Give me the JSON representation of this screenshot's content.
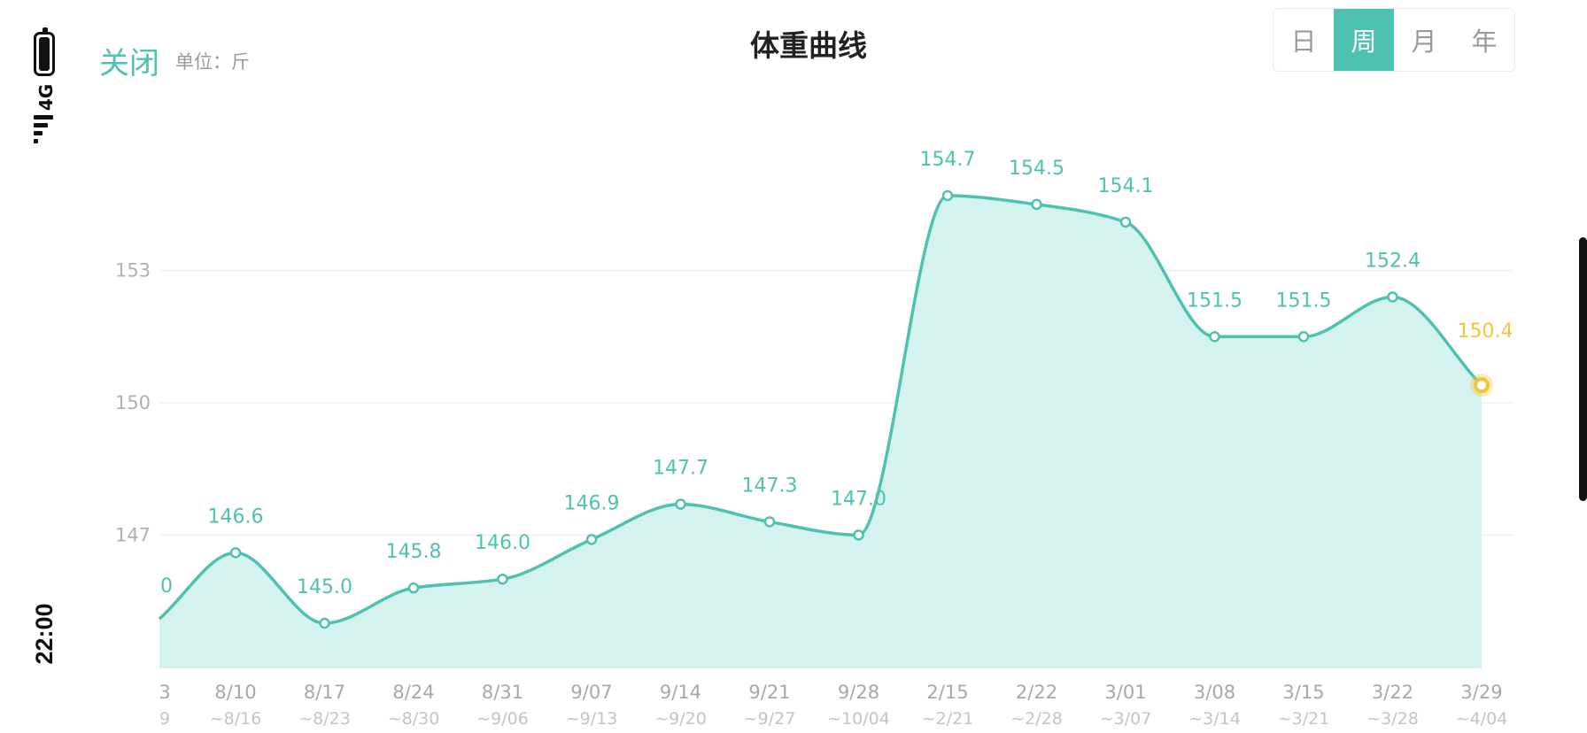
{
  "status_bar": {
    "time": "22:00",
    "network": "4G"
  },
  "header": {
    "close_label": "关闭",
    "unit_label": "单位：斤",
    "title": "体重曲线"
  },
  "period_tabs": [
    {
      "label": "日",
      "active": false
    },
    {
      "label": "周",
      "active": true
    },
    {
      "label": "月",
      "active": false
    },
    {
      "label": "年",
      "active": false
    }
  ],
  "colors": {
    "accent": "#4fc1b1",
    "area_fill": "#d4f3ef",
    "highlight": "#f2c53d",
    "axis_text": "#b0b0b0"
  },
  "chart_data": {
    "type": "area",
    "title": "体重曲线",
    "unit": "斤",
    "yticks": [
      147,
      150,
      153
    ],
    "ylim": [
      144,
      157.5
    ],
    "grid": true,
    "x_start": "3",
    "x_start_range": "9",
    "categories": [
      "8/10",
      "8/17",
      "8/24",
      "8/31",
      "9/07",
      "9/14",
      "9/21",
      "9/28",
      "2/15",
      "2/22",
      "3/01",
      "3/08",
      "3/15",
      "3/22",
      "3/29"
    ],
    "ranges": [
      "~8/16",
      "~8/23",
      "~8/30",
      "~9/06",
      "~9/13",
      "~9/20",
      "~9/27",
      "~10/04",
      "~2/21",
      "~2/28",
      "~3/07",
      "~3/14",
      "~3/21",
      "~3/28",
      "~4/04"
    ],
    "start_value": 145.1,
    "start_value_label": "0",
    "values": [
      146.6,
      145.0,
      145.8,
      146.0,
      146.9,
      147.7,
      147.3,
      147.0,
      154.7,
      154.5,
      154.1,
      151.5,
      151.5,
      152.4,
      150.4
    ],
    "value_labels": [
      "146.6",
      "145.0",
      "145.8",
      "146.0",
      "146.9",
      "147.7",
      "147.3",
      "147.0",
      "154.7",
      "154.5",
      "154.1",
      "151.5",
      "151.5",
      "152.4",
      "150.4"
    ],
    "highlight_index": 14
  }
}
